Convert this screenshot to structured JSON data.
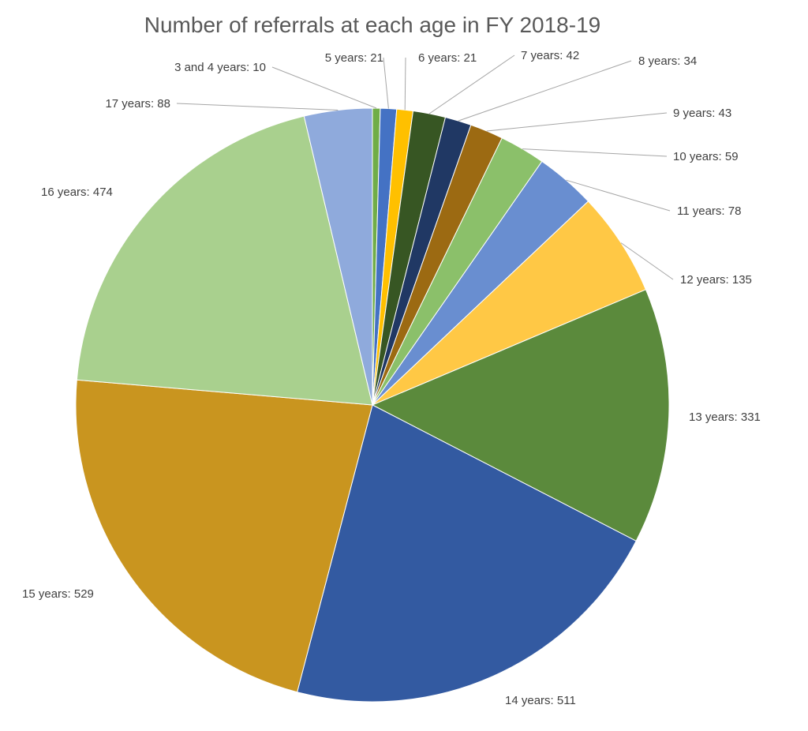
{
  "chart_data": {
    "type": "pie",
    "title": "Number of referrals at each age in FY 2018-19",
    "categories": [
      "3 and 4 years",
      "5 years",
      "6 years",
      "7 years",
      "8 years",
      "9 years",
      "10 years",
      "11 years",
      "12 years",
      "13 years",
      "14 years",
      "15 years",
      "16 years",
      "17 years"
    ],
    "values": [
      10,
      21,
      21,
      42,
      34,
      43,
      59,
      78,
      135,
      331,
      511,
      529,
      474,
      88
    ],
    "labels": [
      "3 and 4 years: 10",
      "5 years: 21",
      "6 years: 21",
      "7 years: 42",
      "8 years: 34",
      "9 years: 43",
      "10 years: 59",
      "11 years: 78",
      "12 years: 135",
      "13 years: 331",
      "14 years: 511",
      "15 years: 529",
      "16 years: 474",
      "17 years: 88"
    ],
    "colors": [
      "#70ad47",
      "#4472c4",
      "#ffc000",
      "#375623",
      "#203864",
      "#9c6a12",
      "#8bc06a",
      "#698ed0",
      "#ffc845",
      "#5b8a3c",
      "#335aa1",
      "#c9951f",
      "#a9d08e",
      "#8faadc"
    ],
    "legend": "none",
    "data_labels": "outside with leader lines"
  }
}
